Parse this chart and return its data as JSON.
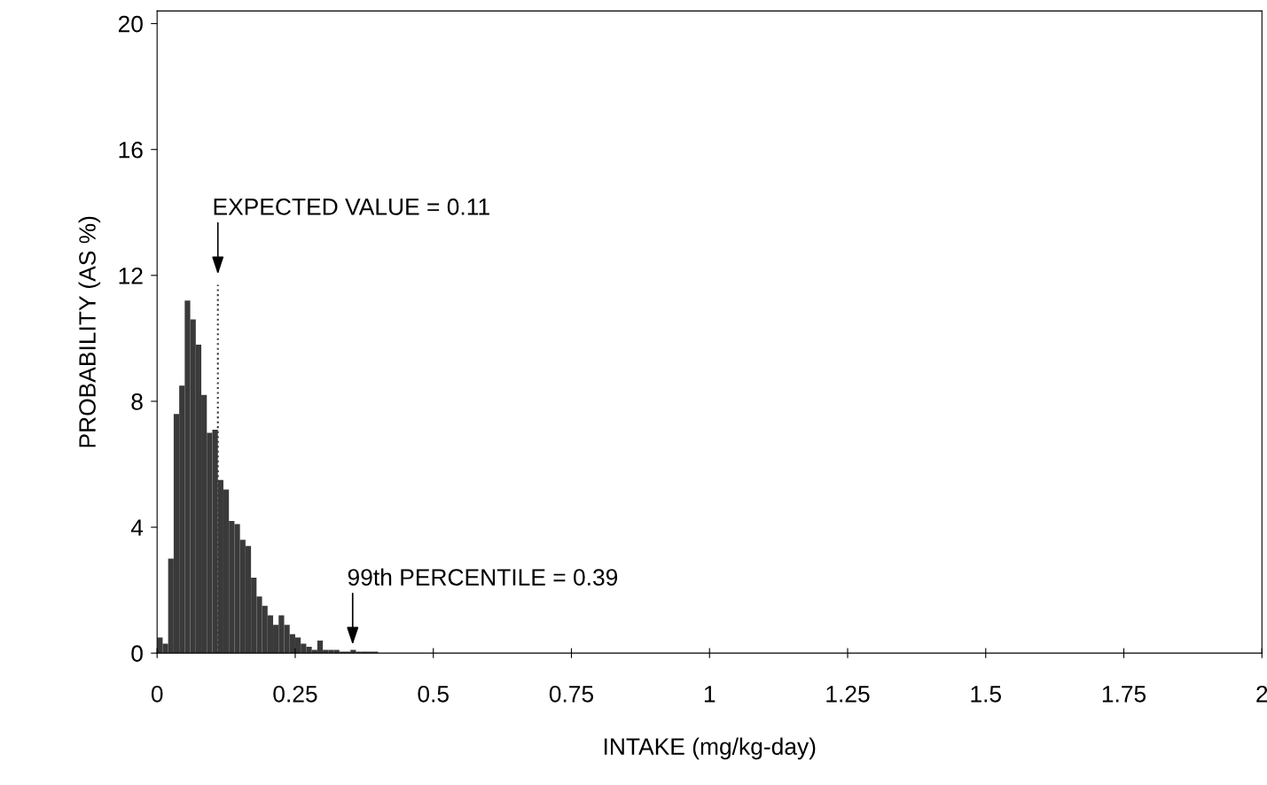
{
  "chart_data": {
    "type": "histogram",
    "xlabel": "INTAKE (mg/kg-day)",
    "ylabel": "PROBABILITY (AS %)",
    "bins": [
      0,
      0.01,
      0.02,
      0.03,
      0.04,
      0.05,
      0.06,
      0.07,
      0.08,
      0.09,
      0.1,
      0.11,
      0.12,
      0.13,
      0.14,
      0.15,
      0.16,
      0.17,
      0.18,
      0.19,
      0.2,
      0.21,
      0.22,
      0.23,
      0.24,
      0.25,
      0.26,
      0.27,
      0.28,
      0.29,
      0.3,
      0.31,
      0.32,
      0.33,
      0.34,
      0.35,
      0.36,
      0.37,
      0.38,
      0.39,
      0.4
    ],
    "values": [
      0.5,
      0.3,
      3.0,
      7.6,
      8.5,
      11.2,
      10.6,
      9.8,
      8.2,
      7.0,
      7.1,
      5.5,
      5.2,
      4.2,
      4.1,
      3.6,
      3.4,
      2.4,
      1.8,
      1.5,
      1.2,
      0.9,
      1.2,
      0.9,
      0.6,
      0.5,
      0.3,
      0.2,
      0.1,
      0.4,
      0.1,
      0.1,
      0.1,
      0.05,
      0.05,
      0.1,
      0.05,
      0.05,
      0.05,
      0.05
    ],
    "color": "#3a3a3a",
    "series": [
      {
        "type": "line",
        "x": [
          0.11,
          0.11
        ],
        "values": [
          0,
          11.7
        ],
        "color": "#3a3a3a",
        "line_style": "dotted"
      }
    ],
    "xlim": [
      0,
      2
    ],
    "ylim": [
      0,
      20.4
    ],
    "xticks": [
      0,
      0.25,
      0.5,
      0.75,
      1,
      1.25,
      1.5,
      1.75,
      2
    ],
    "yticks": [
      0,
      4,
      8,
      12,
      16,
      20
    ],
    "annotations": [
      "EXPECTED VALUE = 0.11",
      "99th PERCENTILE = 0.39"
    ],
    "grid": false,
    "legend": false
  }
}
